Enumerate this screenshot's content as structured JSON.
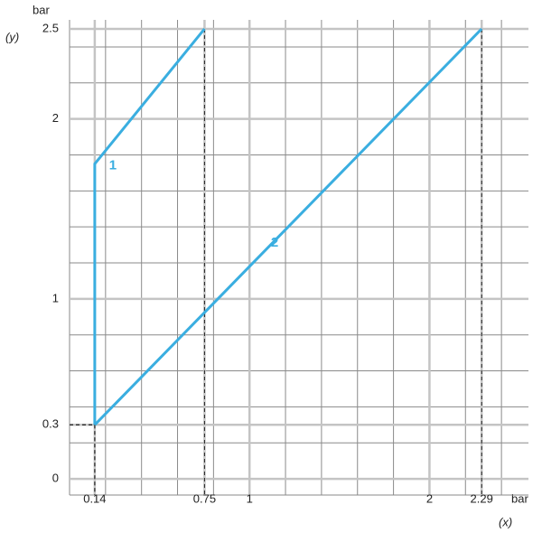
{
  "chart_data": {
    "type": "line",
    "y_label_top": "bar",
    "y_label": "(y)",
    "x_label_unit": "bar",
    "x_label": "(x)",
    "xlim": [
      0,
      2.55
    ],
    "ylim": [
      -0.09,
      2.55
    ],
    "xticks": [
      0.14,
      0.75,
      1,
      2,
      2.29
    ],
    "yticks": [
      0,
      0.3,
      1,
      2,
      2.5
    ],
    "grid": true,
    "series": [
      {
        "name": "1",
        "color": "#3aaee0",
        "x": [
          0.14,
          0.14,
          0.75
        ],
        "values": [
          0.3,
          1.75,
          2.5
        ]
      },
      {
        "name": "2",
        "color": "#3aaee0",
        "x": [
          0.14,
          2.29
        ],
        "values": [
          0.3,
          2.5
        ]
      }
    ]
  }
}
